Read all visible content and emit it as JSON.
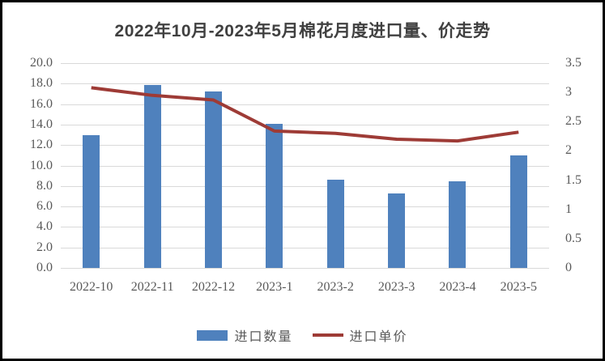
{
  "window": {
    "background": "#ffffff",
    "border_color": "#000000"
  },
  "chart_data": {
    "type": "combo-bar-line",
    "title": "2022年10月-2023年5月棉花月度进口量、价走势",
    "categories": [
      "2022-10",
      "2022-11",
      "2022-12",
      "2023-1",
      "2023-2",
      "2023-3",
      "2023-4",
      "2023-5"
    ],
    "series": [
      {
        "name": "进口数量",
        "type": "bar",
        "axis": "left",
        "color": "#4f81bd",
        "values": [
          13.0,
          17.9,
          17.2,
          14.1,
          8.6,
          7.3,
          8.5,
          11.0
        ]
      },
      {
        "name": "进口单价",
        "type": "line",
        "axis": "right",
        "color": "#9e3b36",
        "values": [
          3.08,
          2.95,
          2.87,
          2.34,
          2.3,
          2.2,
          2.17,
          2.32
        ]
      }
    ],
    "left_axis": {
      "min": 0,
      "max": 20,
      "step": 2,
      "tick_labels": [
        "20.0",
        "18.0",
        "16.0",
        "14.0",
        "12.0",
        "10.0",
        "8.0",
        "6.0",
        "4.0",
        "2.0",
        "0.0"
      ]
    },
    "right_axis": {
      "min": 0,
      "max": 3.5,
      "step": 0.5,
      "tick_labels": [
        "3.5",
        "3",
        "2.5",
        "2",
        "1.5",
        "1",
        "0.5",
        "0"
      ]
    },
    "grid": {
      "show": true,
      "color": "#d9d9d9",
      "orientation": "horizontal"
    },
    "legend": {
      "position": "bottom"
    },
    "text_colors": {
      "title": "#404040",
      "ticks": "#595959"
    }
  }
}
